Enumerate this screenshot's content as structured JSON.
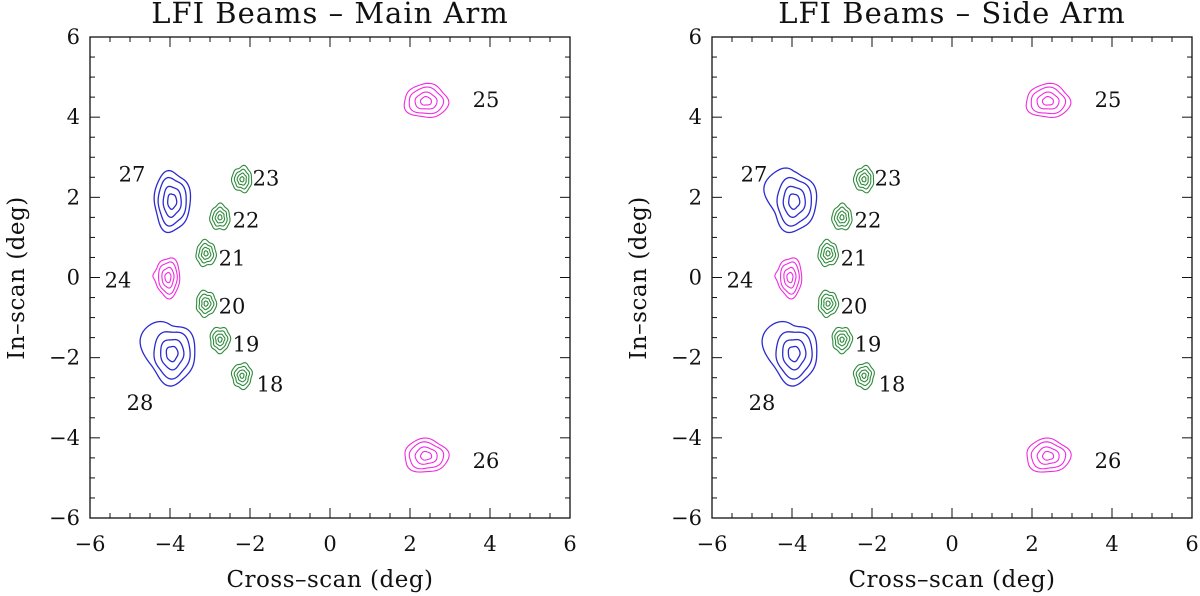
{
  "colors": {
    "blue": "#2b2bcf",
    "green": "#2f8a3c",
    "magenta": "#f02be0",
    "axis": "#111111"
  },
  "chart_data": [
    {
      "type": "contour",
      "title": "LFI Beams – Main Arm",
      "xlabel": "Cross–scan (deg)",
      "ylabel": "In–scan (deg)",
      "xlim": [
        -6,
        6
      ],
      "ylim": [
        -6,
        6
      ],
      "xticks": [
        -6,
        -4,
        -2,
        0,
        2,
        4,
        6
      ],
      "yticks": [
        -6,
        -4,
        -2,
        0,
        2,
        4,
        6
      ],
      "xtick_labels": [
        "−6",
        "−4",
        "−2",
        "0",
        "2",
        "4",
        "6"
      ],
      "ytick_labels": [
        "−6",
        "−4",
        "−2",
        "0",
        "2",
        "4",
        "6"
      ],
      "beams": [
        {
          "id": "25",
          "label": "25",
          "x": 2.4,
          "y": 4.4,
          "rx": 0.55,
          "ry": 0.42,
          "color": "magenta",
          "label_x": 3.9,
          "label_y": 4.45,
          "tail": false
        },
        {
          "id": "26",
          "label": "26",
          "x": 2.4,
          "y": -4.45,
          "rx": 0.55,
          "ry": 0.42,
          "color": "magenta",
          "label_x": 3.9,
          "label_y": -4.55,
          "tail": false
        },
        {
          "id": "27",
          "label": "27",
          "x": -3.95,
          "y": 1.9,
          "rx": 0.45,
          "ry": 0.75,
          "color": "blue",
          "label_x": -4.95,
          "label_y": 2.6,
          "tail": false
        },
        {
          "id": "28",
          "label": "28",
          "x": -3.95,
          "y": -1.9,
          "rx": 0.58,
          "ry": 0.75,
          "color": "blue",
          "label_x": -4.75,
          "label_y": -3.1,
          "tail": true
        },
        {
          "id": "24",
          "label": "24",
          "x": -4.05,
          "y": 0.0,
          "rx": 0.3,
          "ry": 0.5,
          "color": "magenta",
          "label_x": -5.3,
          "label_y": -0.05,
          "tail": false
        },
        {
          "id": "23",
          "label": "23",
          "x": -2.2,
          "y": 2.45,
          "rx": 0.25,
          "ry": 0.32,
          "color": "green",
          "label_x": -1.6,
          "label_y": 2.5,
          "tail": false
        },
        {
          "id": "22",
          "label": "22",
          "x": -2.75,
          "y": 1.5,
          "rx": 0.25,
          "ry": 0.32,
          "color": "green",
          "label_x": -2.1,
          "label_y": 1.45,
          "tail": false
        },
        {
          "id": "21",
          "label": "21",
          "x": -3.1,
          "y": 0.6,
          "rx": 0.25,
          "ry": 0.32,
          "color": "green",
          "label_x": -2.45,
          "label_y": 0.5,
          "tail": false
        },
        {
          "id": "20",
          "label": "20",
          "x": -3.1,
          "y": -0.65,
          "rx": 0.25,
          "ry": 0.32,
          "color": "green",
          "label_x": -2.45,
          "label_y": -0.7,
          "tail": false
        },
        {
          "id": "19",
          "label": "19",
          "x": -2.75,
          "y": -1.55,
          "rx": 0.25,
          "ry": 0.32,
          "color": "green",
          "label_x": -2.1,
          "label_y": -1.65,
          "tail": false
        },
        {
          "id": "18",
          "label": "18",
          "x": -2.2,
          "y": -2.45,
          "rx": 0.25,
          "ry": 0.32,
          "color": "green",
          "label_x": -1.5,
          "label_y": -2.65,
          "tail": false
        }
      ]
    },
    {
      "type": "contour",
      "title": "LFI Beams – Side Arm",
      "xlabel": "Cross–scan (deg)",
      "ylabel": "In–scan (deg)",
      "xlim": [
        -6,
        6
      ],
      "ylim": [
        -6,
        6
      ],
      "xticks": [
        -6,
        -4,
        -2,
        0,
        2,
        4,
        6
      ],
      "yticks": [
        -6,
        -4,
        -2,
        0,
        2,
        4,
        6
      ],
      "xtick_labels": [
        "−6",
        "−4",
        "−2",
        "0",
        "2",
        "4",
        "6"
      ],
      "ytick_labels": [
        "−6",
        "−4",
        "−2",
        "0",
        "2",
        "4",
        "6"
      ],
      "beams": [
        {
          "id": "25",
          "label": "25",
          "x": 2.4,
          "y": 4.4,
          "rx": 0.55,
          "ry": 0.42,
          "color": "magenta",
          "label_x": 3.9,
          "label_y": 4.45,
          "tail": false
        },
        {
          "id": "26",
          "label": "26",
          "x": 2.4,
          "y": -4.45,
          "rx": 0.55,
          "ry": 0.42,
          "color": "magenta",
          "label_x": 3.9,
          "label_y": -4.55,
          "tail": false
        },
        {
          "id": "27",
          "label": "27",
          "x": -3.95,
          "y": 1.9,
          "rx": 0.55,
          "ry": 0.75,
          "color": "blue",
          "label_x": -4.95,
          "label_y": 2.6,
          "tail": true
        },
        {
          "id": "28",
          "label": "28",
          "x": -3.95,
          "y": -1.9,
          "rx": 0.58,
          "ry": 0.75,
          "color": "blue",
          "label_x": -4.75,
          "label_y": -3.1,
          "tail": true
        },
        {
          "id": "24",
          "label": "24",
          "x": -4.05,
          "y": 0.0,
          "rx": 0.3,
          "ry": 0.5,
          "color": "magenta",
          "label_x": -5.3,
          "label_y": -0.05,
          "tail": false
        },
        {
          "id": "23",
          "label": "23",
          "x": -2.2,
          "y": 2.45,
          "rx": 0.25,
          "ry": 0.32,
          "color": "green",
          "label_x": -1.6,
          "label_y": 2.5,
          "tail": false
        },
        {
          "id": "22",
          "label": "22",
          "x": -2.75,
          "y": 1.5,
          "rx": 0.25,
          "ry": 0.32,
          "color": "green",
          "label_x": -2.1,
          "label_y": 1.45,
          "tail": false
        },
        {
          "id": "21",
          "label": "21",
          "x": -3.1,
          "y": 0.6,
          "rx": 0.25,
          "ry": 0.32,
          "color": "green",
          "label_x": -2.45,
          "label_y": 0.5,
          "tail": false
        },
        {
          "id": "20",
          "label": "20",
          "x": -3.1,
          "y": -0.65,
          "rx": 0.25,
          "ry": 0.32,
          "color": "green",
          "label_x": -2.45,
          "label_y": -0.7,
          "tail": false
        },
        {
          "id": "19",
          "label": "19",
          "x": -2.75,
          "y": -1.55,
          "rx": 0.25,
          "ry": 0.32,
          "color": "green",
          "label_x": -2.1,
          "label_y": -1.65,
          "tail": false
        },
        {
          "id": "18",
          "label": "18",
          "x": -2.2,
          "y": -2.45,
          "rx": 0.25,
          "ry": 0.32,
          "color": "green",
          "label_x": -1.5,
          "label_y": -2.65,
          "tail": false
        }
      ]
    }
  ]
}
